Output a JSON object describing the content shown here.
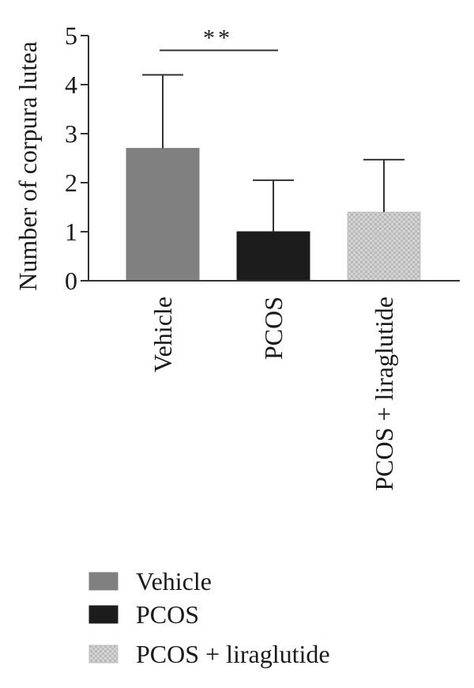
{
  "chart_data": {
    "type": "bar",
    "ylabel": "Number of corpura lutea",
    "ylim": [
      0,
      5
    ],
    "yticks": [
      "0",
      "1",
      "2",
      "3",
      "4",
      "5"
    ],
    "categories": [
      "Vehicle",
      "PCOS",
      "PCOS + liraglutide"
    ],
    "values": [
      2.7,
      1.0,
      1.4
    ],
    "error_upper": [
      4.2,
      2.05,
      2.47
    ],
    "colors": [
      "#808080",
      "#1c1c1c",
      "#c8c8c8"
    ],
    "patterns": [
      "solid",
      "solid",
      "dotted-texture"
    ],
    "significance": {
      "label": "**",
      "between": [
        "Vehicle",
        "PCOS"
      ],
      "y": 4.7
    },
    "legend": {
      "placement": "bottom-left",
      "entries": [
        "Vehicle",
        "PCOS",
        "PCOS + liraglutide"
      ]
    },
    "grid": false
  }
}
